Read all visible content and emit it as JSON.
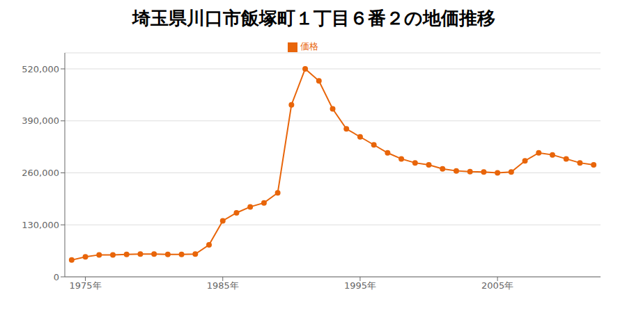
{
  "chart_data": {
    "type": "line",
    "title": "埼玉県川口市飯塚町１丁目６番２の地価推移",
    "x": [
      1974,
      1975,
      1976,
      1977,
      1978,
      1979,
      1980,
      1981,
      1982,
      1983,
      1984,
      1985,
      1986,
      1987,
      1988,
      1989,
      1990,
      1991,
      1992,
      1993,
      1994,
      1995,
      1996,
      1997,
      1998,
      1999,
      2000,
      2001,
      2002,
      2003,
      2004,
      2005,
      2006,
      2007,
      2008,
      2009,
      2010,
      2011,
      2012
    ],
    "series": [
      {
        "name": "価格",
        "color": "#e8650a",
        "marker": "circle",
        "values": [
          42000,
          50000,
          55000,
          55000,
          56000,
          57000,
          57000,
          56000,
          56000,
          57000,
          80000,
          140000,
          160000,
          175000,
          185000,
          210000,
          430000,
          520000,
          490000,
          420000,
          370000,
          350000,
          330000,
          310000,
          295000,
          285000,
          280000,
          270000,
          265000,
          263000,
          262000,
          260000,
          262000,
          290000,
          310000,
          305000,
          295000,
          285000,
          280000
        ]
      }
    ],
    "xlim": [
      1973.5,
      2012.5
    ],
    "xticks": [
      {
        "value": 1975,
        "label": "1975年"
      },
      {
        "value": 1985,
        "label": "1985年"
      },
      {
        "value": 1995,
        "label": "1995年"
      },
      {
        "value": 2005,
        "label": "2005年"
      }
    ],
    "ylim": [
      0,
      560000
    ],
    "yticks": [
      0,
      {
        "value": 130000,
        "label": "130,000"
      },
      {
        "value": 260000,
        "label": "260,000"
      },
      {
        "value": 390000,
        "label": "390,000"
      },
      {
        "value": 520000,
        "label": "520,000"
      }
    ],
    "grid": "y",
    "legend": "top"
  }
}
